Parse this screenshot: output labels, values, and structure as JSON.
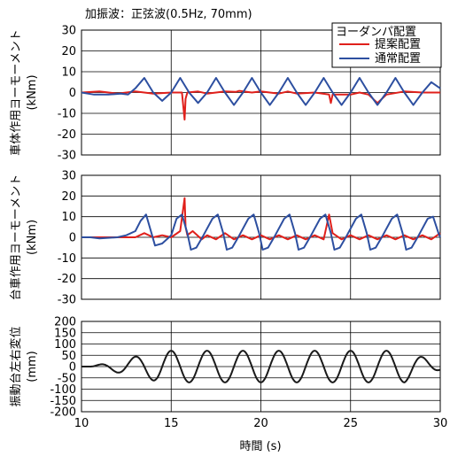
{
  "chart_data": [
    {
      "type": "line",
      "title": "加振波：正弦波(0.5Hz, 70mm)",
      "ylabel": "車体作用ヨーモーメント",
      "yunit": "(kNm)",
      "xlim": [
        10,
        30
      ],
      "ylim": [
        -30,
        30
      ],
      "xticks": [
        10,
        15,
        20,
        25,
        30
      ],
      "yticks": [
        -30,
        -20,
        -10,
        0,
        10,
        20,
        30
      ],
      "grid": true,
      "legend": {
        "title": "ヨーダンパ配置",
        "entries": [
          {
            "label": "提案配置",
            "color": "#e0201b"
          },
          {
            "label": "通常配置",
            "color": "#2d4fa0"
          }
        ],
        "placement": "top-right"
      },
      "series": [
        {
          "name": "提案配置",
          "color": "#e0201b",
          "x": [
            10.0,
            11.0,
            12.0,
            13.0,
            14.0,
            15.0,
            15.6,
            15.75,
            15.8,
            15.9,
            16.5,
            17.0,
            18.0,
            18.6,
            18.8,
            19.5,
            20.0,
            21.0,
            21.5,
            22.0,
            23.0,
            23.8,
            23.9,
            24.0,
            25.0,
            25.5,
            26.0,
            26.5,
            27.0,
            28.0,
            29.0,
            30.0
          ],
          "y": [
            0,
            0.5,
            -0.5,
            0.5,
            -0.5,
            0,
            0,
            -13,
            -3,
            0,
            0.5,
            -0.5,
            0.5,
            0.3,
            0.8,
            0,
            0.5,
            -0.5,
            0.5,
            -0.5,
            0,
            -1,
            -5,
            -1,
            -1,
            0,
            -1,
            -5,
            -1,
            0.5,
            0,
            0
          ]
        },
        {
          "name": "通常配置",
          "color": "#2d4fa0",
          "x": [
            10.0,
            10.7,
            11.5,
            12.2,
            12.6,
            13.0,
            13.5,
            14.0,
            14.5,
            15.0,
            15.5,
            16.0,
            16.5,
            17.0,
            17.5,
            18.0,
            18.5,
            19.0,
            19.5,
            20.0,
            20.5,
            21.0,
            21.5,
            22.0,
            22.5,
            23.0,
            23.5,
            24.0,
            24.5,
            25.0,
            25.5,
            26.0,
            26.5,
            27.0,
            27.5,
            28.0,
            28.5,
            29.0,
            29.5,
            30.0
          ],
          "y": [
            0,
            -1,
            -1,
            -0.5,
            -1,
            2,
            7,
            0,
            -4,
            0,
            7,
            0,
            -5,
            0,
            7,
            0,
            -6,
            0,
            7,
            0,
            -6,
            0,
            7,
            0,
            -6,
            0,
            7,
            0,
            -6,
            0,
            7,
            0,
            -6,
            0,
            7,
            0,
            -6,
            0,
            5,
            2
          ]
        }
      ]
    },
    {
      "type": "line",
      "ylabel": "台車作用ヨーモーメント",
      "yunit": "(kNm)",
      "xlim": [
        10,
        30
      ],
      "ylim": [
        -30,
        30
      ],
      "xticks": [
        10,
        15,
        20,
        25,
        30
      ],
      "yticks": [
        -30,
        -20,
        -10,
        0,
        10,
        20,
        30
      ],
      "grid": true,
      "series": [
        {
          "name": "提案配置",
          "color": "#e0201b",
          "x": [
            10.0,
            11.0,
            12.0,
            13.0,
            13.5,
            14.0,
            14.5,
            15.0,
            15.5,
            15.75,
            15.8,
            15.9,
            16.2,
            16.7,
            17.0,
            17.5,
            18.0,
            18.5,
            19.0,
            19.5,
            20.0,
            20.5,
            21.0,
            21.5,
            22.0,
            22.5,
            23.0,
            23.5,
            23.8,
            24.0,
            24.5,
            25.0,
            25.5,
            26.0,
            26.5,
            27.0,
            27.5,
            28.0,
            28.5,
            29.0,
            29.5,
            30.0
          ],
          "y": [
            0,
            0,
            0,
            0,
            2,
            0,
            1,
            0,
            3,
            19,
            5,
            1,
            3,
            -1,
            1,
            -1,
            2,
            -1,
            1,
            -1,
            1,
            -1,
            1,
            -1,
            1,
            -1,
            1,
            -1,
            11,
            2,
            -1,
            1,
            -1,
            1,
            -1,
            1,
            -1,
            1,
            -1,
            1,
            -1,
            2
          ]
        },
        {
          "name": "通常配置",
          "color": "#2d4fa0",
          "x": [
            10.0,
            10.5,
            11.0,
            12.0,
            12.5,
            13.0,
            13.3,
            13.6,
            13.9,
            14.1,
            14.5,
            15.0,
            15.3,
            15.6,
            15.9,
            16.1,
            16.4,
            16.8,
            17.3,
            17.6,
            17.9,
            18.1,
            18.4,
            18.8,
            19.3,
            19.6,
            19.9,
            20.1,
            20.4,
            20.8,
            21.3,
            21.6,
            21.9,
            22.1,
            22.4,
            22.8,
            23.3,
            23.6,
            23.9,
            24.1,
            24.4,
            24.8,
            25.3,
            25.6,
            25.9,
            26.1,
            26.4,
            26.8,
            27.3,
            27.6,
            27.9,
            28.1,
            28.4,
            28.8,
            29.3,
            29.6,
            29.9,
            30.0
          ],
          "y": [
            0,
            0,
            -0.5,
            0,
            1,
            3,
            8,
            11,
            2,
            -4,
            -3,
            1,
            9,
            11,
            2,
            -6,
            -5,
            1,
            9,
            11,
            2,
            -6,
            -5,
            1,
            9,
            11,
            2,
            -6,
            -5,
            1,
            9,
            11,
            2,
            -6,
            -5,
            1,
            9,
            11,
            2,
            -6,
            -5,
            1,
            9,
            11,
            2,
            -6,
            -5,
            1,
            9,
            11,
            2,
            -6,
            -5,
            1,
            9,
            10,
            2,
            0
          ]
        }
      ]
    },
    {
      "type": "line",
      "ylabel": "振動台左右変位",
      "yunit": "(mm)",
      "xlabel": "時間 (s)",
      "xlim": [
        10,
        30
      ],
      "ylim": [
        -200,
        200
      ],
      "xticks": [
        10,
        15,
        20,
        25,
        30
      ],
      "xticklabels": [
        "10",
        "15",
        "20",
        "25",
        "30"
      ],
      "yticks": [
        -200,
        -150,
        -100,
        -50,
        0,
        50,
        100,
        150,
        200
      ],
      "grid": true,
      "series": [
        {
          "name": "振動台左右変位",
          "color": "#1a1a1a",
          "function": "sine",
          "start": 10.5,
          "amplitude_peak": 70,
          "frequency_hz": 0.5
        }
      ]
    }
  ]
}
